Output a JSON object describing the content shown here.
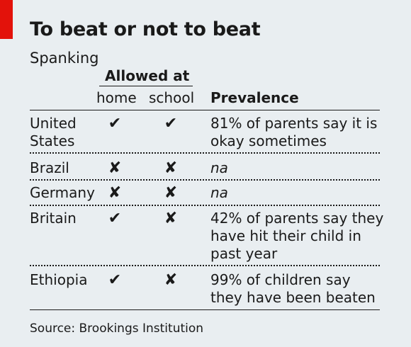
{
  "chart_data": {
    "type": "table",
    "title": "To beat or not to beat",
    "subtitle": "Spanking",
    "group_header": "Allowed at",
    "columns": [
      "home",
      "school",
      "Prevalence"
    ],
    "rows": [
      {
        "country": "United States",
        "home": "✔",
        "school": "✔",
        "prevalence": "81% of parents say it is okay sometimes"
      },
      {
        "country": "Brazil",
        "home": "✘",
        "school": "✘",
        "prevalence": "na"
      },
      {
        "country": "Germany",
        "home": "✘",
        "school": "✘",
        "prevalence": "na"
      },
      {
        "country": "Britain",
        "home": "✔",
        "school": "✘",
        "prevalence": "42% of parents say they have hit their child in past year"
      },
      {
        "country": "Ethiopia",
        "home": "✔",
        "school": "✘",
        "prevalence": "99% of children say they have been beaten"
      }
    ],
    "source": "Source: Brookings Institution"
  }
}
